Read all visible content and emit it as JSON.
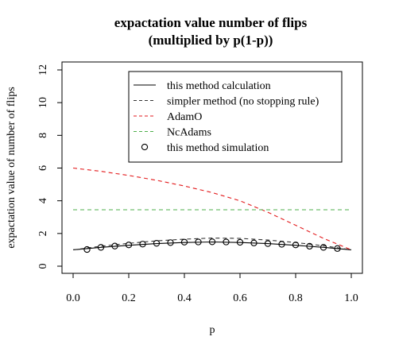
{
  "chart_data": {
    "type": "line",
    "title": "expactation value number of flips",
    "subtitle": "(multiplied by p(1-p))",
    "xlabel": "p",
    "ylabel": "expactation value of number of flips",
    "xlim": [
      0,
      1
    ],
    "ylim": [
      0,
      12
    ],
    "xticks": [
      "0.0",
      "0.2",
      "0.4",
      "0.6",
      "0.8",
      "1.0"
    ],
    "yticks": [
      "0",
      "2",
      "4",
      "6",
      "8",
      "10",
      "12"
    ],
    "grid": false,
    "legend_position": "top-right",
    "series": [
      {
        "name": "this method calculation",
        "style": "solid",
        "color": "#000000",
        "x": [
          0,
          0.1,
          0.2,
          0.3,
          0.4,
          0.5,
          0.6,
          0.7,
          0.8,
          0.9,
          1.0
        ],
        "y": [
          1.0,
          1.15,
          1.28,
          1.38,
          1.45,
          1.48,
          1.45,
          1.38,
          1.28,
          1.15,
          1.0
        ]
      },
      {
        "name": "simpler method (no stopping rule)",
        "style": "dashed",
        "color": "#333333",
        "x": [
          0,
          0.1,
          0.2,
          0.3,
          0.4,
          0.5,
          0.6,
          0.7,
          0.8,
          0.9,
          1.0
        ],
        "y": [
          1.0,
          1.22,
          1.4,
          1.55,
          1.65,
          1.72,
          1.7,
          1.6,
          1.45,
          1.25,
          1.0
        ]
      },
      {
        "name": "AdamO",
        "style": "dashed",
        "color": "#e31a1c",
        "x": [
          0,
          0.1,
          0.2,
          0.3,
          0.4,
          0.5,
          0.6,
          0.7,
          0.8,
          0.9,
          1.0
        ],
        "y": [
          6.0,
          5.8,
          5.55,
          5.25,
          4.9,
          4.5,
          4.0,
          3.3,
          2.5,
          1.7,
          1.0
        ]
      },
      {
        "name": "NcAdams",
        "style": "dashed",
        "color": "#4daf4a",
        "x": [
          0,
          1.0
        ],
        "y": [
          3.45,
          3.45
        ]
      },
      {
        "name": "this method simulation",
        "style": "points",
        "color": "#000000",
        "x": [
          0.05,
          0.1,
          0.15,
          0.2,
          0.25,
          0.3,
          0.35,
          0.4,
          0.45,
          0.5,
          0.55,
          0.6,
          0.65,
          0.7,
          0.75,
          0.8,
          0.85,
          0.9,
          0.95
        ],
        "y": [
          1.02,
          1.15,
          1.23,
          1.3,
          1.35,
          1.4,
          1.44,
          1.47,
          1.48,
          1.49,
          1.48,
          1.46,
          1.42,
          1.38,
          1.34,
          1.3,
          1.22,
          1.15,
          1.08
        ]
      }
    ]
  }
}
